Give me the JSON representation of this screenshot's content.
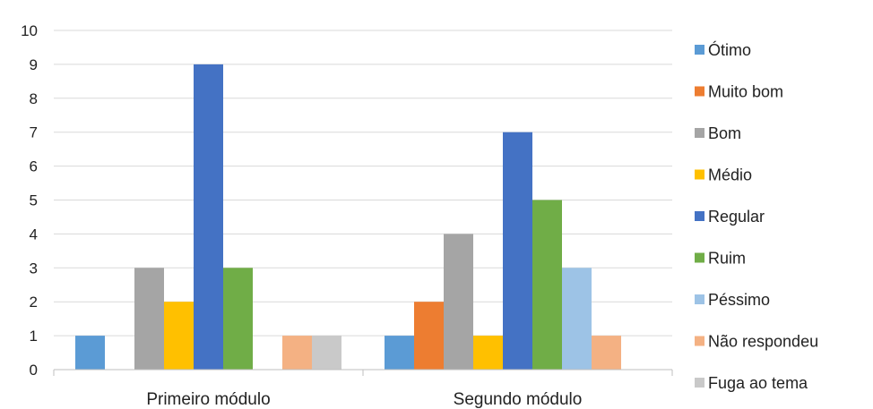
{
  "chart_data": {
    "type": "bar",
    "categories": [
      "Primeiro módulo",
      "Segundo módulo"
    ],
    "ylim": [
      0,
      10
    ],
    "yticks": [
      0,
      1,
      2,
      3,
      4,
      5,
      6,
      7,
      8,
      9,
      10
    ],
    "grid": true,
    "legend_position": "right",
    "series": [
      {
        "name": "Ótimo",
        "color": "#5b9bd5",
        "values": [
          1,
          1
        ]
      },
      {
        "name": "Muito bom",
        "color": "#ed7d31",
        "values": [
          0,
          2
        ]
      },
      {
        "name": "Bom",
        "color": "#a5a5a5",
        "values": [
          3,
          4
        ]
      },
      {
        "name": "Médio",
        "color": "#ffc000",
        "values": [
          2,
          1
        ]
      },
      {
        "name": "Regular",
        "color": "#4472c4",
        "values": [
          9,
          7
        ]
      },
      {
        "name": "Ruim",
        "color": "#70ad47",
        "values": [
          3,
          5
        ]
      },
      {
        "name": "Péssimo",
        "color": "#9dc3e6",
        "values": [
          0,
          3
        ]
      },
      {
        "name": "Não respondeu",
        "color": "#f4b183",
        "values": [
          1,
          1
        ]
      },
      {
        "name": "Fuga ao tema",
        "color": "#c9c9c9",
        "values": [
          1,
          0
        ]
      }
    ]
  }
}
